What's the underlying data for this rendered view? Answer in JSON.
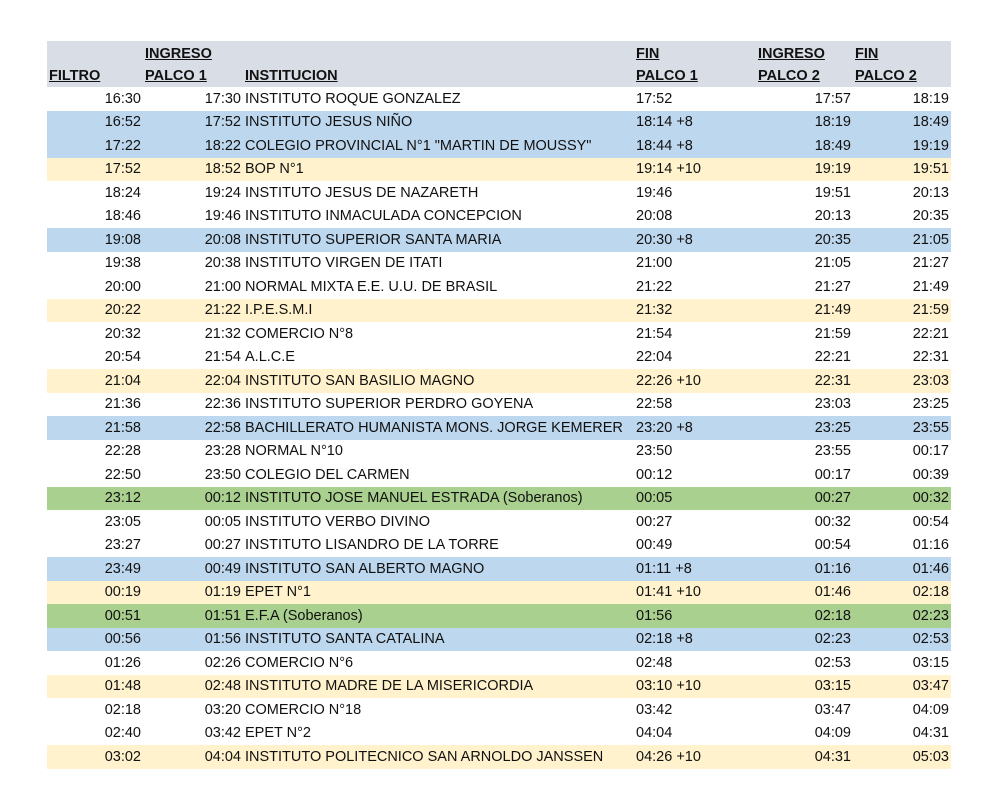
{
  "headers": {
    "filtro": "FILTRO",
    "ingreso1_a": "INGRESO",
    "ingreso1_b": "PALCO 1",
    "institucion": "INSTITUCION",
    "fin1_a": "FIN",
    "fin1_b": "PALCO 1",
    "ingreso2_a": "INGRESO",
    "ingreso2_b": "PALCO 2",
    "fin2_a": "FIN",
    "fin2_b": "PALCO 2"
  },
  "colors": {
    "header": "#d9dde6",
    "blue": "#bdd7ee",
    "yellow": "#fff2cc",
    "green": "#a9d08e"
  },
  "rows": [
    [
      "16:30",
      "17:30",
      "INSTITUTO ROQUE GONZALEZ",
      "17:52",
      "17:57",
      "18:19",
      "white"
    ],
    [
      "16:52",
      "17:52",
      "INSTITUTO JESUS NIÑO",
      "18:14 +8",
      "18:19",
      "18:49",
      "blue"
    ],
    [
      "17:22",
      "18:22",
      "COLEGIO PROVINCIAL N°1 \"MARTIN DE MOUSSY\"",
      "18:44 +8",
      "18:49",
      "19:19",
      "blue"
    ],
    [
      "17:52",
      "18:52",
      "BOP N°1",
      "19:14 +10",
      "19:19",
      "19:51",
      "yellow"
    ],
    [
      "18:24",
      "19:24",
      "INSTITUTO JESUS DE NAZARETH",
      "19:46",
      "19:51",
      "20:13",
      "white"
    ],
    [
      "18:46",
      "19:46",
      "INSTITUTO INMACULADA CONCEPCION",
      "20:08",
      "20:13",
      "20:35",
      "white"
    ],
    [
      "19:08",
      "20:08",
      "INSTITUTO SUPERIOR SANTA MARIA",
      "20:30 +8",
      "20:35",
      "21:05",
      "blue"
    ],
    [
      "19:38",
      "20:38",
      "INSTITUTO VIRGEN DE ITATI",
      "21:00",
      "21:05",
      "21:27",
      "white"
    ],
    [
      "20:00",
      "21:00",
      "NORMAL MIXTA E.E. U.U. DE BRASIL",
      "21:22",
      "21:27",
      "21:49",
      "white"
    ],
    [
      "20:22",
      "21:22",
      "I.P.E.S.M.I",
      "21:32",
      "21:49",
      "21:59",
      "yellow"
    ],
    [
      "20:32",
      "21:32",
      "COMERCIO N°8",
      "21:54",
      "21:59",
      "22:21",
      "white"
    ],
    [
      "20:54",
      "21:54",
      "A.L.C.E",
      "22:04",
      "22:21",
      "22:31",
      "white"
    ],
    [
      "21:04",
      "22:04",
      "INSTITUTO SAN BASILIO MAGNO",
      "22:26 +10",
      "22:31",
      "23:03",
      "yellow"
    ],
    [
      "21:36",
      "22:36",
      "INSTITUTO SUPERIOR PERDRO GOYENA",
      "22:58",
      "23:03",
      "23:25",
      "white"
    ],
    [
      "21:58",
      "22:58",
      "BACHILLERATO HUMANISTA MONS. JORGE KEMERER",
      "23:20 +8",
      "23:25",
      "23:55",
      "blue"
    ],
    [
      "22:28",
      "23:28",
      "NORMAL N°10",
      "23:50",
      "23:55",
      "00:17",
      "white"
    ],
    [
      "22:50",
      "23:50",
      "COLEGIO DEL CARMEN",
      "00:12",
      "00:17",
      "00:39",
      "white"
    ],
    [
      "23:12",
      "00:12",
      "INSTITUTO JOSE MANUEL ESTRADA (Soberanos)",
      "00:05",
      "00:27",
      "00:32",
      "green"
    ],
    [
      "23:05",
      "00:05",
      "INSTITUTO VERBO DIVINO",
      "00:27",
      "00:32",
      "00:54",
      "white"
    ],
    [
      "23:27",
      "00:27",
      "INSTITUTO LISANDRO DE LA TORRE",
      "00:49",
      "00:54",
      "01:16",
      "white"
    ],
    [
      "23:49",
      "00:49",
      "INSTITUTO SAN ALBERTO MAGNO",
      "01:11 +8",
      "01:16",
      "01:46",
      "blue"
    ],
    [
      "00:19",
      "01:19",
      "EPET N°1",
      "01:41 +10",
      "01:46",
      "02:18",
      "yellow"
    ],
    [
      "00:51",
      "01:51",
      "E.F.A (Soberanos)",
      "01:56",
      "02:18",
      "02:23",
      "green"
    ],
    [
      "00:56",
      "01:56",
      "INSTITUTO SANTA CATALINA",
      "02:18 +8",
      "02:23",
      "02:53",
      "blue"
    ],
    [
      "01:26",
      "02:26",
      "COMERCIO N°6",
      "02:48",
      "02:53",
      "03:15",
      "white"
    ],
    [
      "01:48",
      "02:48",
      "INSTITUTO MADRE DE LA MISERICORDIA",
      "03:10 +10",
      "03:15",
      "03:47",
      "yellow"
    ],
    [
      "02:18",
      "03:20",
      "COMERCIO N°18",
      "03:42",
      "03:47",
      "04:09",
      "white"
    ],
    [
      "02:40",
      "03:42",
      "EPET N°2",
      "04:04",
      "04:09",
      "04:31",
      "white"
    ],
    [
      "03:02",
      "04:04",
      "INSTITUTO POLITECNICO SAN ARNOLDO JANSSEN",
      "04:26 +10",
      "04:31",
      "05:03",
      "yellow"
    ]
  ]
}
